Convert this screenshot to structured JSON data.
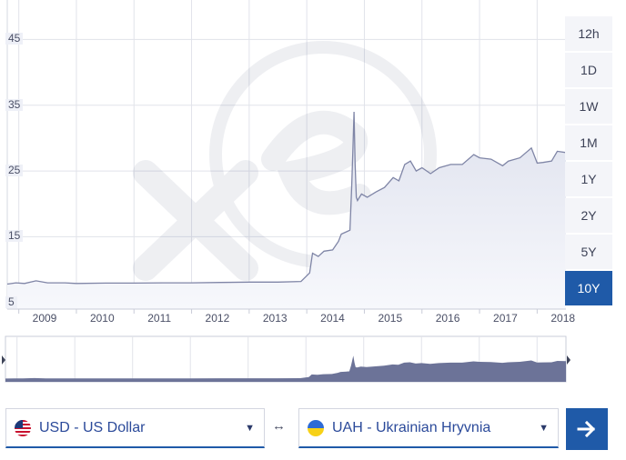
{
  "chart_data": {
    "type": "area",
    "title": "",
    "xlabel": "",
    "ylabel": "",
    "x_ticks": [
      "2009",
      "2010",
      "2011",
      "2012",
      "2013",
      "2014",
      "2015",
      "2016",
      "2017",
      "2018"
    ],
    "y_ticks": [
      "5",
      "15",
      "25",
      "35",
      "45"
    ],
    "ylim": [
      4,
      51
    ],
    "xlim": [
      2008.8,
      2018.5
    ],
    "grid": true,
    "series": [
      {
        "name": "",
        "x": [
          2008.8,
          2008.95,
          2009.1,
          2009.3,
          2009.5,
          2009.8,
          2010.0,
          2010.5,
          2011.0,
          2011.5,
          2012.0,
          2012.5,
          2013.0,
          2013.5,
          2013.9,
          2014.05,
          2014.1,
          2014.2,
          2014.3,
          2014.45,
          2014.55,
          2014.6,
          2014.7,
          2014.75,
          2014.78,
          2014.8,
          2014.82,
          2014.84,
          2014.86,
          2014.88,
          2014.95,
          2015.05,
          2015.2,
          2015.35,
          2015.5,
          2015.6,
          2015.7,
          2015.8,
          2015.9,
          2016.0,
          2016.15,
          2016.3,
          2016.5,
          2016.7,
          2016.9,
          2017.0,
          2017.2,
          2017.4,
          2017.5,
          2017.7,
          2017.9,
          2018.0,
          2018.1,
          2018.25,
          2018.35,
          2018.5
        ],
        "values": [
          7.8,
          8.0,
          7.9,
          8.3,
          8.0,
          8.0,
          7.9,
          7.95,
          7.95,
          8.0,
          8.0,
          8.05,
          8.1,
          8.1,
          8.2,
          9.5,
          12.5,
          12.0,
          12.8,
          13.0,
          14.3,
          15.4,
          15.8,
          16.0,
          22.5,
          28.0,
          34.0,
          26.0,
          21.0,
          20.5,
          21.5,
          21.0,
          21.8,
          22.5,
          24.0,
          23.5,
          26.0,
          26.5,
          25.0,
          25.5,
          24.6,
          25.5,
          26.0,
          26.0,
          27.5,
          27.0,
          26.8,
          25.8,
          26.5,
          27.0,
          28.5,
          26.2,
          26.3,
          26.5,
          28.0,
          27.8
        ]
      }
    ]
  },
  "range_buttons": [
    "12h",
    "1D",
    "1W",
    "1M",
    "1Y",
    "2Y",
    "5Y",
    "10Y"
  ],
  "active_range": "10Y",
  "from_currency": {
    "label": "USD - US Dollar",
    "flag": "us-flag-icon"
  },
  "to_currency": {
    "label": "UAH - Ukrainian Hryvnia",
    "flag": "ukraine-flag-icon"
  },
  "swap_symbol": "↔",
  "go_symbol": "→",
  "colors": {
    "line": "#7f85a6",
    "area_top": "#e4e6f0",
    "area_bottom": "#f6f7fb",
    "navigator_fill": "#6c7398",
    "accent": "#1f5aa8"
  }
}
